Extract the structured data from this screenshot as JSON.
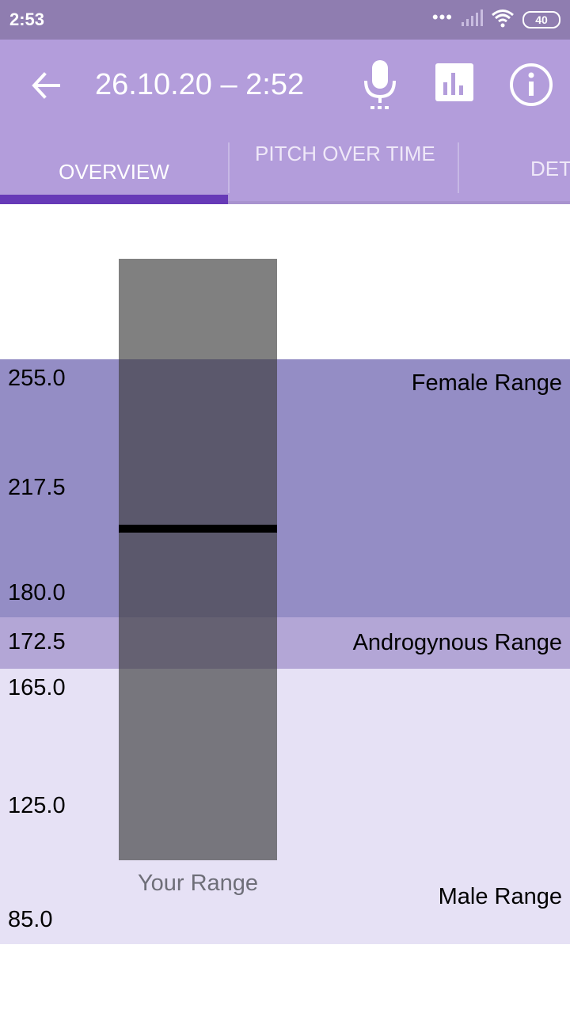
{
  "status_bar": {
    "time": "2:53",
    "signal_dots": "•••",
    "battery": "40",
    "icons": [
      "signal-icon",
      "wifi-icon",
      "battery-icon"
    ]
  },
  "app_bar": {
    "title": "26.10.20 – 2:52",
    "icons": [
      "arrow-left-icon",
      "microphone-icon",
      "bar-chart-icon",
      "info-icon"
    ]
  },
  "tabs": [
    {
      "label": "OVERVIEW",
      "selected": true
    },
    {
      "label": "PITCH OVER TIME",
      "selected": false
    },
    {
      "label": "DET",
      "selected": false
    }
  ],
  "chart_data": {
    "type": "bar",
    "ticks": [
      "255.0",
      "217.5",
      "180.0",
      "172.5",
      "165.0",
      "125.0",
      "85.0"
    ],
    "bands": [
      {
        "name": "Female Range",
        "min": 180.0,
        "max": 255.0,
        "color": "#948dc5"
      },
      {
        "name": "Androgynous Range",
        "min": 165.0,
        "max": 180.0,
        "color": "#b3a6d6"
      },
      {
        "name": "Male Range",
        "min": 85.0,
        "max": 165.0,
        "color": "#e6e1f5"
      }
    ],
    "your_range": {
      "label": "Your Range",
      "min": 100.0,
      "max": 283.0,
      "median": 204.0
    },
    "colors": {
      "your_range": "#3c3c3c",
      "median": "#000000"
    }
  }
}
